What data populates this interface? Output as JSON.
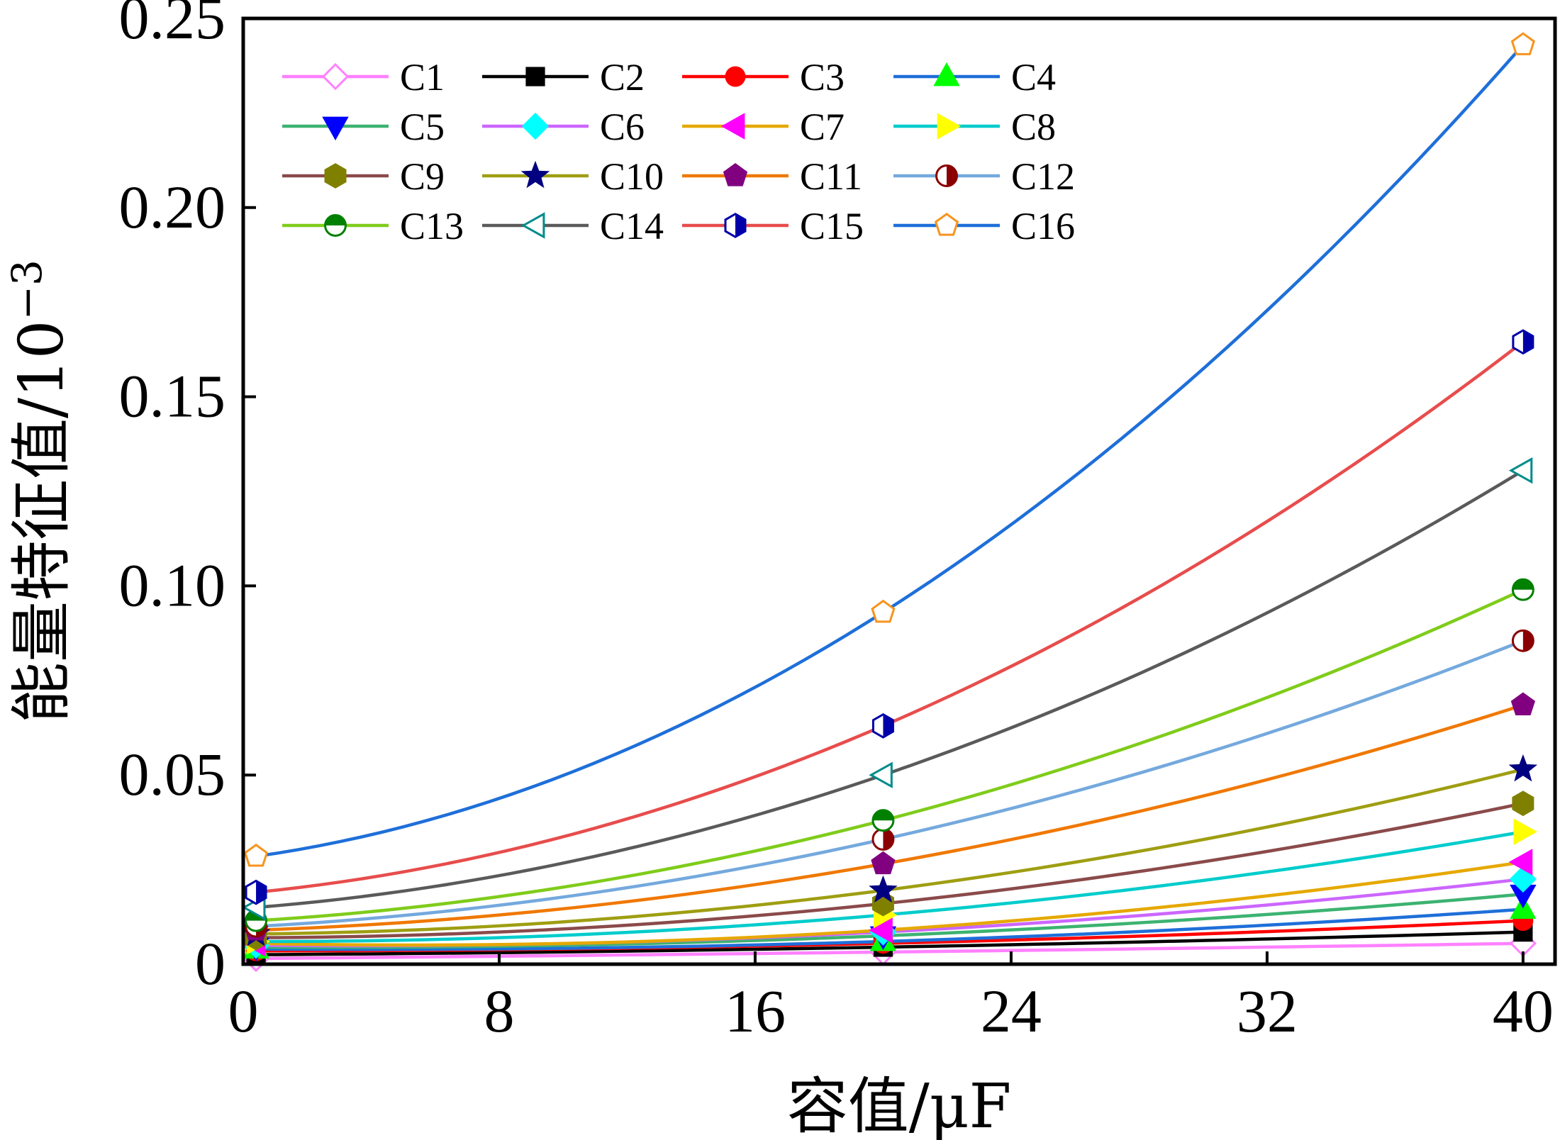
{
  "chart_data": {
    "type": "line",
    "title": "",
    "xlabel": "容值/μF",
    "ylabel": "能量特征值/10",
    "ylabel_exponent": "−3",
    "xlim": [
      0,
      41
    ],
    "ylim": [
      0,
      0.25
    ],
    "xticks": [
      0,
      8,
      16,
      24,
      32,
      40
    ],
    "xtick_labels": [
      "0",
      "8",
      "16",
      "24",
      "32",
      "40"
    ],
    "yticks": [
      0,
      0.05,
      0.1,
      0.15,
      0.2,
      0.25
    ],
    "ytick_labels": [
      "0",
      "0.05",
      "0.10",
      "0.15",
      "0.20",
      "0.25"
    ],
    "grid": false,
    "legend_position": "top-left",
    "x": [
      0.4,
      20,
      40
    ],
    "series": [
      {
        "name": "C1",
        "color": "#FF80FF",
        "marker": "diamond-open",
        "values": [
          0.0015,
          0.0032,
          0.0055
        ]
      },
      {
        "name": "C2",
        "color": "#000000",
        "marker": "square",
        "values": [
          0.0025,
          0.0045,
          0.0085
        ]
      },
      {
        "name": "C3",
        "color": "#FF0000",
        "marker": "circle",
        "values": [
          0.0035,
          0.0055,
          0.0115
        ]
      },
      {
        "name": "C4",
        "color": "#00FF00",
        "line_color": "#1E6FD9",
        "marker": "triangle-up",
        "values": [
          0.004,
          0.006,
          0.0145
        ]
      },
      {
        "name": "C5",
        "color": "#0000FF",
        "line_color": "#3CB371",
        "marker": "triangle-down",
        "values": [
          0.0045,
          0.0075,
          0.0185
        ]
      },
      {
        "name": "C6",
        "color": "#00FFFF",
        "line_color": "#CC66FF",
        "marker": "diamond",
        "values": [
          0.005,
          0.0085,
          0.0225
        ]
      },
      {
        "name": "C7",
        "color": "#FF00FF",
        "line_color": "#E6A800",
        "marker": "triangle-left",
        "values": [
          0.0055,
          0.009,
          0.027
        ]
      },
      {
        "name": "C8",
        "color": "#FFFF00",
        "line_color": "#00CCCC",
        "marker": "triangle-right",
        "values": [
          0.006,
          0.013,
          0.035
        ]
      },
      {
        "name": "C9",
        "color": "#808000",
        "line_color": "#8B4A4A",
        "marker": "hexagon",
        "values": [
          0.007,
          0.016,
          0.0425
        ]
      },
      {
        "name": "C10",
        "color": "#000080",
        "line_color": "#9E9E12",
        "marker": "star",
        "values": [
          0.008,
          0.0195,
          0.0515
        ]
      },
      {
        "name": "C11",
        "color": "#800080",
        "line_color": "#F07800",
        "marker": "pentagon",
        "values": [
          0.009,
          0.0265,
          0.0685
        ]
      },
      {
        "name": "C12",
        "color": "#8B0000",
        "line_color": "#74A9DD",
        "marker": "circle-half-right",
        "values": [
          0.01,
          0.033,
          0.0855
        ]
      },
      {
        "name": "C13",
        "color": "#008000",
        "line_color": "#7FCC1A",
        "marker": "circle-half-top",
        "values": [
          0.0115,
          0.038,
          0.099
        ]
      },
      {
        "name": "C14",
        "color": "#008B8B",
        "line_color": "#5A5A5A",
        "marker": "triangle-left-open",
        "values": [
          0.015,
          0.05,
          0.1305
        ]
      },
      {
        "name": "C15",
        "color": "#0000AA",
        "line_color": "#E84C4C",
        "marker": "hexagon-half",
        "values": [
          0.019,
          0.063,
          0.1645
        ]
      },
      {
        "name": "C16",
        "color": "#F7941D",
        "line_color": "#1E6FD9",
        "marker": "pentagon-open",
        "values": [
          0.0285,
          0.093,
          0.243
        ]
      }
    ]
  }
}
